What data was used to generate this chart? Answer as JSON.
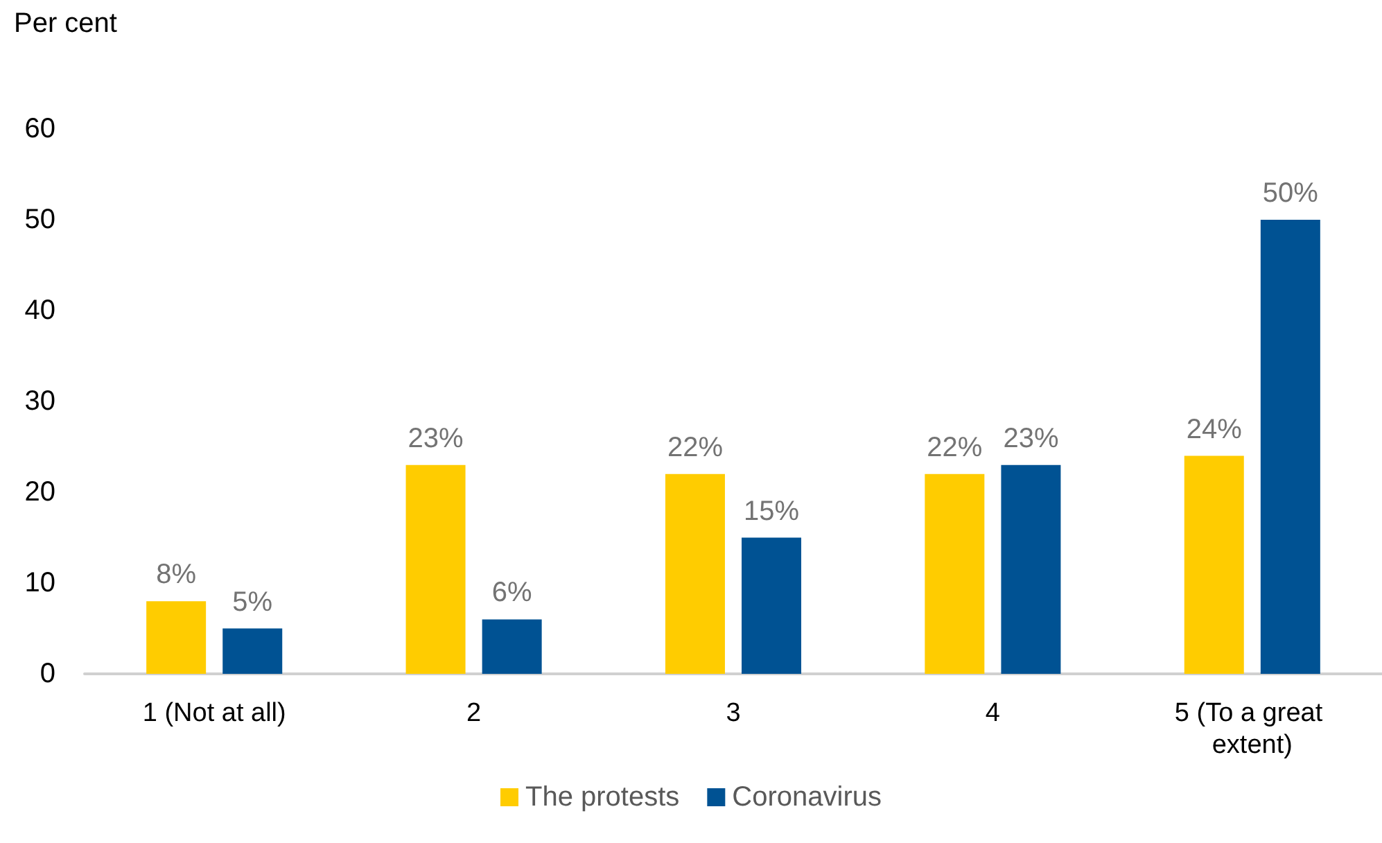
{
  "chart_data": {
    "type": "bar",
    "ylabel": "Per cent",
    "categories": [
      "1 (Not at all)",
      "2",
      "3",
      "4",
      "5 (To a great extent)"
    ],
    "series": [
      {
        "name": "The protests",
        "color": "#ffcc00",
        "values": [
          8,
          23,
          22,
          22,
          24
        ],
        "value_labels": [
          "8%",
          "23%",
          "22%",
          "22%",
          "24%"
        ]
      },
      {
        "name": "Coronavirus",
        "color": "#005293",
        "values": [
          5,
          6,
          15,
          23,
          50
        ],
        "value_labels": [
          "5%",
          "6%",
          "15%",
          "23%",
          "50%"
        ]
      }
    ],
    "ylim": [
      0,
      60
    ],
    "yticks": [
      0,
      10,
      20,
      30,
      40,
      50,
      60
    ],
    "grid": false,
    "legend": "bottom"
  }
}
